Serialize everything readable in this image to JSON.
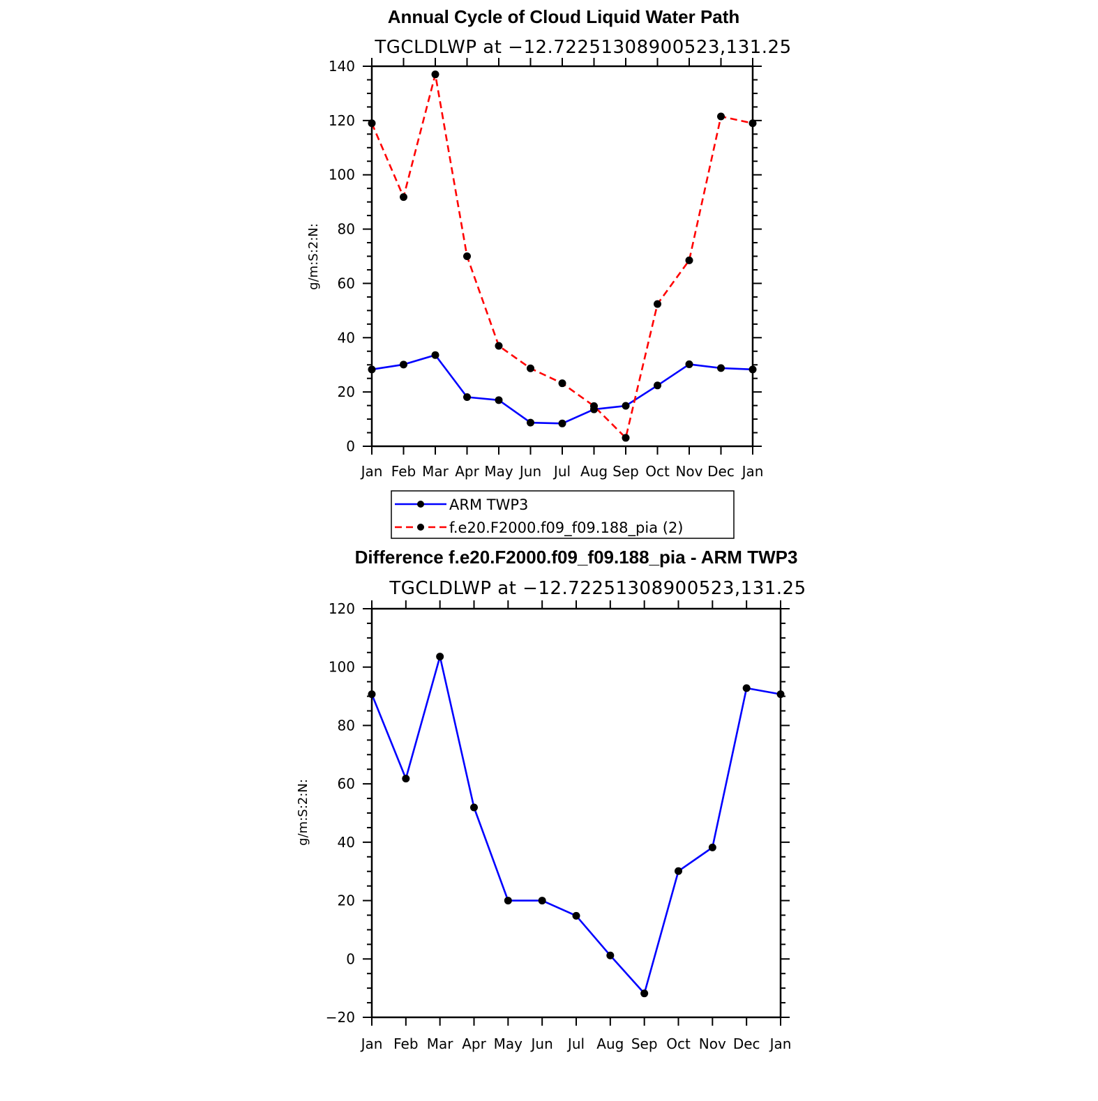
{
  "chart_data": [
    {
      "type": "line",
      "title": "Annual Cycle of Cloud Liquid Water Path",
      "subtitle": "TGCLDLWP at −12.72251308900523,131.25",
      "xlabel": "",
      "ylabel": "g/m:S:2:N:",
      "categories": [
        "Jan",
        "Feb",
        "Mar",
        "Apr",
        "May",
        "Jun",
        "Jul",
        "Aug",
        "Sep",
        "Oct",
        "Nov",
        "Dec",
        "Jan"
      ],
      "ylim": [
        0,
        140
      ],
      "yticks": [
        0,
        20,
        40,
        60,
        80,
        100,
        120,
        140
      ],
      "series": [
        {
          "name": "ARM TWP3",
          "color": "#0000ff",
          "dash": "solid",
          "values": [
            28.3,
            30.1,
            33.6,
            18.1,
            17.0,
            8.7,
            8.4,
            13.6,
            14.9,
            22.4,
            30.2,
            28.8,
            28.3
          ]
        },
        {
          "name": "f.e20.F2000.f09_f09.188_pia (2)",
          "color": "#ff0000",
          "dash": "dashed",
          "values": [
            119,
            91.8,
            137,
            70,
            37,
            28.7,
            23.2,
            14.8,
            3.1,
            52.4,
            68.5,
            121.5,
            119
          ]
        }
      ],
      "legend": {
        "placement": "bottom-center"
      },
      "grid": false
    },
    {
      "type": "line",
      "title": "Difference f.e20.F2000.f09_f09.188_pia - ARM TWP3",
      "subtitle": "TGCLDLWP at −12.72251308900523,131.25",
      "xlabel": "",
      "ylabel": "g/m:S:2:N:",
      "categories": [
        "Jan",
        "Feb",
        "Mar",
        "Apr",
        "May",
        "Jun",
        "Jul",
        "Aug",
        "Sep",
        "Oct",
        "Nov",
        "Dec",
        "Jan"
      ],
      "ylim": [
        -20,
        120
      ],
      "yticks": [
        -20,
        0,
        20,
        40,
        60,
        80,
        100,
        120
      ],
      "series": [
        {
          "color": "#0000ff",
          "dash": "solid",
          "values": [
            90.7,
            61.8,
            103.6,
            51.9,
            20.0,
            20.0,
            14.8,
            1.2,
            -11.8,
            30.1,
            38.2,
            92.8,
            90.7
          ]
        }
      ],
      "grid": false
    }
  ]
}
